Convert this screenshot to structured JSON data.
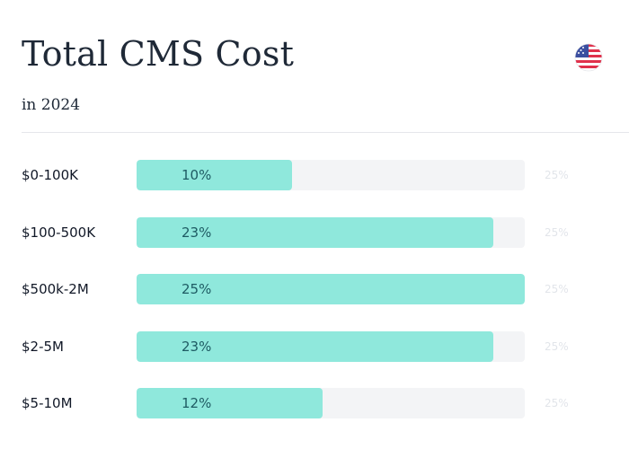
{
  "header": {
    "title": "Total CMS Cost",
    "subtitle": "in 2024",
    "flag_icon": "us-flag-icon"
  },
  "colors": {
    "bar_fill": "#8fe8dc",
    "track": "#f3f4f6",
    "value_text": "#1e5b63",
    "max_text": "#e2e5ea"
  },
  "chart_data": {
    "type": "bar",
    "orientation": "horizontal",
    "title": "Total CMS Cost",
    "subtitle": "in 2024",
    "categories": [
      "$0-100K",
      "$100-500K",
      "$500k-2M",
      "$2-5M",
      "$5-10M"
    ],
    "values": [
      10,
      23,
      25,
      23,
      12
    ],
    "value_labels": [
      "10%",
      "23%",
      "25%",
      "23%",
      "12%"
    ],
    "max_label": "25%",
    "xlim": [
      0,
      25
    ],
    "grid": false,
    "legend": "none"
  }
}
